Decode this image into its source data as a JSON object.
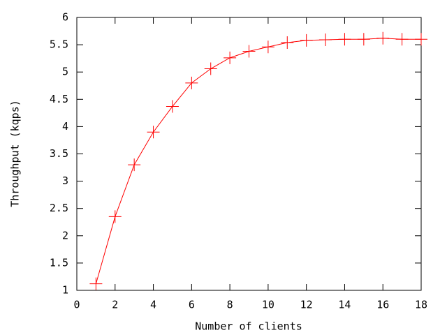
{
  "chart_data": {
    "type": "line",
    "x_label": "Number of clients",
    "y_label": "Throughput (kqps)",
    "x": [
      1,
      2,
      3,
      4,
      5,
      6,
      7,
      8,
      9,
      10,
      11,
      12,
      13,
      14,
      15,
      16,
      17,
      18
    ],
    "series": [
      {
        "color": "#ff0000",
        "values": [
          1.12,
          2.35,
          3.3,
          3.9,
          4.37,
          4.8,
          5.06,
          5.26,
          5.38,
          5.46,
          5.54,
          5.58,
          5.59,
          5.6,
          5.6,
          5.62,
          5.6,
          5.6
        ]
      }
    ],
    "xlim": [
      0,
      18
    ],
    "xticks": [
      0,
      2,
      4,
      6,
      8,
      10,
      12,
      14,
      16,
      18
    ],
    "ylim": [
      1,
      6
    ],
    "yticks": [
      1,
      1.5,
      2,
      2.5,
      3,
      3.5,
      4,
      4.5,
      5,
      5.5,
      6
    ]
  }
}
